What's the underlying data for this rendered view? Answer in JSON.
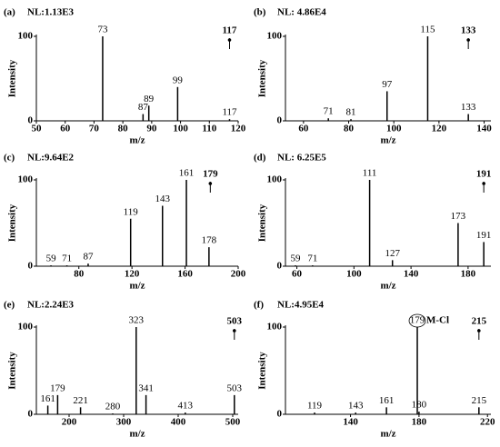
{
  "chart_data": [
    {
      "type": "bar",
      "panel": "(a)",
      "note": "NL:1.13E3",
      "xlabel": "m/z",
      "ylabel": "Intensity",
      "color": "#000000",
      "x": [
        73,
        87,
        89,
        99,
        117
      ],
      "values": [
        100,
        8,
        18,
        40,
        2
      ],
      "xlim": [
        50,
        120
      ],
      "ylim": [
        0,
        100
      ],
      "xticks": [
        50,
        60,
        70,
        80,
        90,
        100,
        110,
        120
      ],
      "yticks": [
        0,
        100
      ],
      "precursor": 117
    },
    {
      "type": "bar",
      "panel": "(b)",
      "note": "NL: 4.86E4",
      "xlabel": "m/z",
      "ylabel": "Intensity",
      "color": "#000000",
      "x": [
        71,
        81,
        97,
        115,
        133
      ],
      "values": [
        3,
        2,
        35,
        100,
        8
      ],
      "xlim": [
        52,
        143
      ],
      "ylim": [
        0,
        100
      ],
      "xticks": [
        60,
        80,
        100,
        120,
        140
      ],
      "yticks": [
        0,
        100
      ],
      "precursor": 133
    },
    {
      "type": "bar",
      "panel": "(c)",
      "note": "NL:9.64E2",
      "xlabel": "m/z",
      "ylabel": "Intensity",
      "color": "#000000",
      "x": [
        59,
        71,
        87,
        119,
        143,
        161,
        178
      ],
      "values": [
        1,
        1,
        3,
        55,
        70,
        100,
        22
      ],
      "xlim": [
        48,
        200
      ],
      "ylim": [
        0,
        100
      ],
      "xticks": [
        80,
        120,
        160,
        200
      ],
      "yticks": [
        0,
        100
      ],
      "precursor": 179
    },
    {
      "type": "bar",
      "panel": "(d)",
      "note": "NL: 6.25E5",
      "xlabel": "m/z",
      "ylabel": "Intensity",
      "color": "#000000",
      "x": [
        59,
        71,
        111,
        127,
        173,
        191
      ],
      "values": [
        1,
        1,
        100,
        7,
        50,
        28
      ],
      "xlim": [
        52,
        196
      ],
      "ylim": [
        0,
        100
      ],
      "xticks": [
        60,
        100,
        140,
        180
      ],
      "yticks": [
        0,
        100
      ],
      "precursor": 191
    },
    {
      "type": "bar",
      "panel": "(e)",
      "note": "NL:2.24E3",
      "xlabel": "m/z",
      "ylabel": "Intensity",
      "color": "#000000",
      "x": [
        161,
        179,
        221,
        280,
        323,
        341,
        413,
        503
      ],
      "values": [
        10,
        22,
        8,
        1,
        100,
        22,
        2,
        22
      ],
      "xlim": [
        140,
        510
      ],
      "ylim": [
        0,
        100
      ],
      "xticks": [
        200,
        300,
        400,
        500
      ],
      "yticks": [
        0,
        100
      ],
      "precursor": 503
    },
    {
      "type": "bar",
      "panel": "(f)",
      "note": "NL:4.95E4",
      "xlabel": "m/z",
      "ylabel": "Intensity",
      "color": "#000000",
      "x": [
        119,
        143,
        161,
        179,
        180,
        215
      ],
      "values": [
        2,
        2,
        8,
        100,
        3,
        8
      ],
      "xlim": [
        102,
        222
      ],
      "ylim": [
        0,
        100
      ],
      "xticks": [
        140,
        180,
        220
      ],
      "yticks": [
        0,
        100
      ],
      "precursor": 215,
      "annotation": {
        "text": "M-Cl",
        "x": 179
      }
    }
  ]
}
